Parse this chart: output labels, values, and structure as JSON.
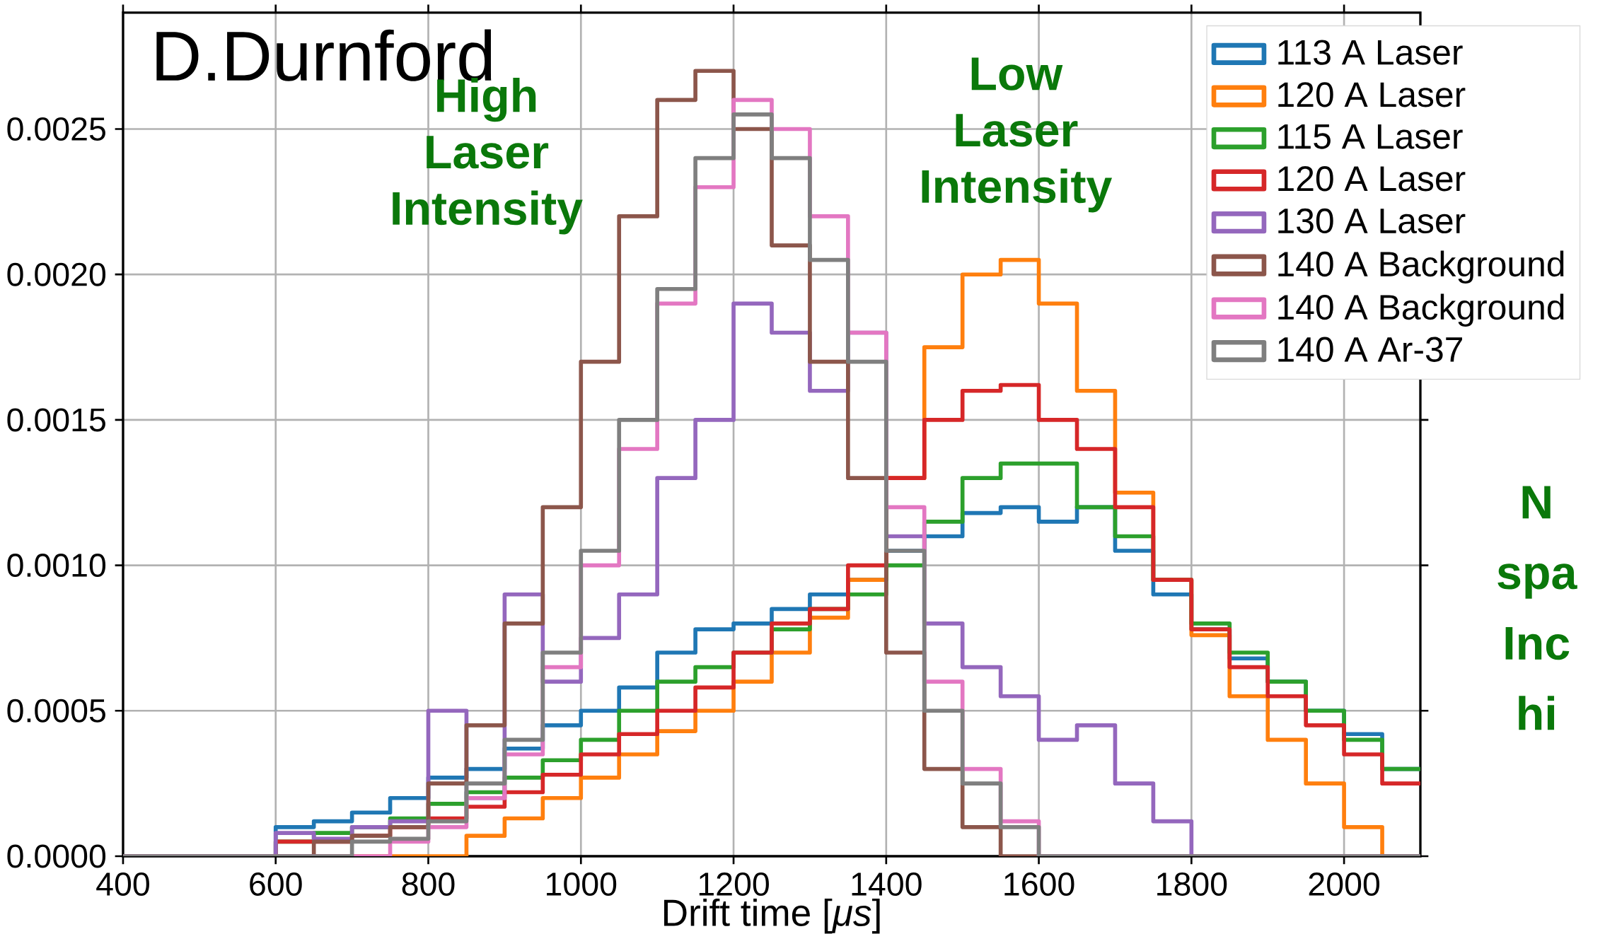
{
  "chart_data": {
    "type": "histogram",
    "xlabel": "Drift time [*μs*]",
    "bins": [
      400,
      450,
      500,
      550,
      600,
      650,
      700,
      750,
      800,
      850,
      900,
      950,
      1000,
      1050,
      1100,
      1150,
      1200,
      1250,
      1300,
      1350,
      1400,
      1450,
      1500,
      1550,
      1600,
      1650,
      1700,
      1750,
      1800,
      1850,
      1900,
      1950,
      2000,
      2050,
      2100
    ],
    "series": [
      {
        "name": "113 A  Laser",
        "color": "#1f77b4",
        "values": [
          0,
          0,
          0,
          0,
          0.0001,
          0.00012,
          0.00015,
          0.0002,
          0.00027,
          0.0003,
          0.00037,
          0.00045,
          0.0005,
          0.00058,
          0.0007,
          0.00078,
          0.0008,
          0.00085,
          0.0009,
          0.00095,
          0.00105,
          0.0011,
          0.00118,
          0.0012,
          0.00115,
          0.0012,
          0.00105,
          0.0009,
          0.00078,
          0.00068,
          0.0006,
          0.0005,
          0.00042,
          0.0003
        ]
      },
      {
        "name": "120 A  Laser",
        "color": "#ff7f0e",
        "values": [
          0,
          0,
          0,
          0,
          0,
          0,
          0,
          0,
          0,
          7e-05,
          0.00013,
          0.0002,
          0.00027,
          0.00035,
          0.00043,
          0.0005,
          0.0006,
          0.0007,
          0.00082,
          0.00095,
          0.0013,
          0.00175,
          0.002,
          0.00205,
          0.0019,
          0.0016,
          0.00125,
          0.00095,
          0.00076,
          0.00055,
          0.0004,
          0.00025,
          0.0001,
          0
        ]
      },
      {
        "name": "115 A  Laser",
        "color": "#2ca02c",
        "values": [
          0,
          0,
          0,
          0,
          5e-05,
          8e-05,
          0.0001,
          0.00013,
          0.00018,
          0.00022,
          0.00027,
          0.00033,
          0.0004,
          0.0005,
          0.0006,
          0.00065,
          0.0007,
          0.00078,
          0.00085,
          0.0009,
          0.001,
          0.00115,
          0.0013,
          0.00135,
          0.00135,
          0.0012,
          0.0011,
          0.00095,
          0.0008,
          0.0007,
          0.0006,
          0.0005,
          0.0004,
          0.0003
        ]
      },
      {
        "name": "120 A  Laser",
        "color": "#d62728",
        "values": [
          0,
          0,
          0,
          0,
          5e-05,
          5e-05,
          7e-05,
          0.0001,
          0.00013,
          0.00017,
          0.00022,
          0.00028,
          0.00035,
          0.00042,
          0.0005,
          0.00058,
          0.0007,
          0.0008,
          0.00085,
          0.001,
          0.0013,
          0.0015,
          0.0016,
          0.00162,
          0.0015,
          0.0014,
          0.0012,
          0.00095,
          0.00078,
          0.00065,
          0.00055,
          0.00045,
          0.00035,
          0.00025
        ]
      },
      {
        "name": "130 A  Laser",
        "color": "#9467bd",
        "values": [
          0,
          0,
          0,
          0,
          8e-05,
          6e-05,
          0.0001,
          0.00012,
          0.0005,
          0.0002,
          0.0009,
          0.0006,
          0.00075,
          0.0009,
          0.0013,
          0.0015,
          0.0019,
          0.0018,
          0.0016,
          0.0018,
          0.0011,
          0.0008,
          0.00065,
          0.00055,
          0.0004,
          0.00045,
          0.00025,
          0.00012,
          0,
          0,
          0,
          0,
          0,
          0
        ]
      },
      {
        "name": "140 A  Background",
        "color": "#8c564b",
        "values": [
          0,
          0,
          0,
          0,
          0,
          5e-05,
          7e-05,
          0.0001,
          0.00025,
          0.00045,
          0.0008,
          0.0012,
          0.0017,
          0.0022,
          0.0026,
          0.0027,
          0.0025,
          0.0021,
          0.0017,
          0.0013,
          0.0007,
          0.0003,
          0.0001,
          0,
          0,
          0,
          0,
          0,
          0,
          0,
          0,
          0,
          0,
          0
        ]
      },
      {
        "name": "140 A  Background",
        "color": "#e377c2",
        "values": [
          0,
          0,
          0,
          0,
          0,
          0,
          0,
          5e-05,
          0.0001,
          0.0002,
          0.00035,
          0.00065,
          0.001,
          0.0014,
          0.0019,
          0.0023,
          0.0026,
          0.0025,
          0.0022,
          0.0018,
          0.0012,
          0.0006,
          0.0003,
          0.00012,
          0,
          0,
          0,
          0,
          0,
          0,
          0,
          0,
          0,
          0
        ]
      },
      {
        "name": "140 A  Ar-37",
        "color": "#7f7f7f",
        "values": [
          0,
          0,
          0,
          0,
          0,
          0,
          5e-05,
          6e-05,
          0.00012,
          0.00025,
          0.0004,
          0.0007,
          0.00105,
          0.0015,
          0.00195,
          0.0024,
          0.00255,
          0.0024,
          0.00205,
          0.0017,
          0.00105,
          0.0005,
          0.00025,
          0.0001,
          0,
          0,
          0,
          0,
          0,
          0,
          0,
          0,
          0,
          0
        ]
      }
    ],
    "xlim": [
      400,
      2100
    ],
    "ylim": [
      0,
      0.0029
    ],
    "xticks": [
      400,
      600,
      800,
      1000,
      1200,
      1400,
      1600,
      1800,
      2000
    ],
    "yticks": [
      {
        "value": 0,
        "label": "0.0000"
      },
      {
        "value": 0.0005,
        "label": "0.0005"
      },
      {
        "value": 0.001,
        "label": "0.0010"
      },
      {
        "value": 0.0015,
        "label": "0.0015"
      },
      {
        "value": 0.002,
        "label": "0.0020"
      },
      {
        "value": 0.0025,
        "label": "0.0025"
      }
    ],
    "grid": true,
    "legend": "top right",
    "annotations": [
      "D.Durnford",
      "High Laser Intensity",
      "Low Laser Intensity",
      "N spa Inc hi"
    ]
  }
}
